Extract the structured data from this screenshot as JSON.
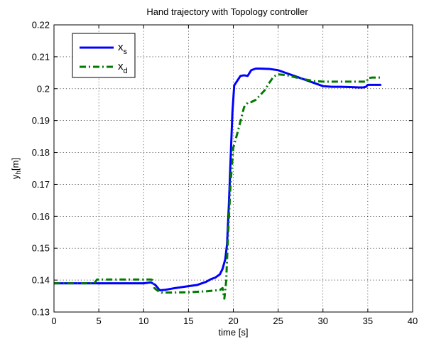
{
  "chart_data": {
    "type": "line",
    "title": "Hand trajectory with Topology controller",
    "xlabel": "time [s]",
    "ylabel": {
      "main": "y",
      "sub": "h",
      "unit": "[m]"
    },
    "xlim": [
      0,
      40
    ],
    "ylim": [
      0.13,
      0.22
    ],
    "xticks": [
      0,
      5,
      10,
      15,
      20,
      25,
      30,
      35,
      40
    ],
    "xtick_labels": [
      "0",
      "5",
      "10",
      "15",
      "20",
      "25",
      "30",
      "35",
      "40"
    ],
    "yticks": [
      0.13,
      0.14,
      0.15,
      0.16,
      0.17,
      0.18,
      0.19,
      0.2,
      0.21,
      0.22
    ],
    "ytick_labels": [
      "0.13",
      "0.14",
      "0.15",
      "0.16",
      "0.17",
      "0.18",
      "0.19",
      "0.2",
      "0.21",
      "0.22"
    ],
    "grid": true,
    "legend_position": "top-left",
    "series": [
      {
        "name": "x",
        "name_sub": "s",
        "color": "#0000ff",
        "style": "solid",
        "x": [
          0,
          5,
          10,
          10.8,
          11.3,
          11.8,
          12.5,
          13.5,
          15,
          16,
          16.5,
          17,
          17.5,
          18,
          18.5,
          18.8,
          19.1,
          19.3,
          19.5,
          19.7,
          19.9,
          20.1,
          20.4,
          20.8,
          21.2,
          21.6,
          22,
          22.5,
          23,
          24,
          25,
          26,
          27,
          28,
          29,
          30,
          31,
          32,
          33,
          34,
          34.5,
          34.8,
          35,
          35.5,
          36,
          36.5
        ],
        "y": [
          0.139,
          0.139,
          0.139,
          0.1393,
          0.1385,
          0.1368,
          0.137,
          0.1375,
          0.1381,
          0.1385,
          0.139,
          0.1395,
          0.1403,
          0.1408,
          0.1418,
          0.1435,
          0.1465,
          0.1512,
          0.1632,
          0.178,
          0.1925,
          0.201,
          0.2023,
          0.204,
          0.2042,
          0.204,
          0.2058,
          0.2063,
          0.2063,
          0.2062,
          0.2058,
          0.2048,
          0.2038,
          0.2028,
          0.2018,
          0.2008,
          0.2006,
          0.2006,
          0.2005,
          0.2004,
          0.2004,
          0.2006,
          0.2012,
          0.2012,
          0.2012,
          0.2012
        ]
      },
      {
        "name": "x",
        "name_sub": "d",
        "color": "#007a00",
        "style": "dash-dot",
        "x": [
          0,
          4.5,
          4.8,
          10.8,
          11,
          11.2,
          11.6,
          12,
          13,
          15,
          17,
          18.5,
          18.8,
          19,
          19.2,
          19.4,
          19.7,
          20,
          20.4,
          20.8,
          21.2,
          21.6,
          22,
          22.5,
          23,
          23.5,
          24,
          24.5,
          25,
          26,
          27,
          28,
          29,
          30,
          31,
          32,
          33,
          34,
          34.9,
          35,
          35.5,
          36,
          36.5
        ],
        "y": [
          0.139,
          0.139,
          0.1402,
          0.1402,
          0.14,
          0.1375,
          0.1366,
          0.1361,
          0.1361,
          0.1362,
          0.1365,
          0.1369,
          0.1375,
          0.1342,
          0.1395,
          0.153,
          0.1705,
          0.1815,
          0.1855,
          0.1898,
          0.1942,
          0.1956,
          0.1958,
          0.1965,
          0.198,
          0.1995,
          0.2018,
          0.2038,
          0.2045,
          0.2042,
          0.2035,
          0.2029,
          0.2024,
          0.2022,
          0.2022,
          0.2022,
          0.2022,
          0.2022,
          0.2022,
          0.2033,
          0.2035,
          0.2035,
          0.2035
        ]
      }
    ]
  }
}
